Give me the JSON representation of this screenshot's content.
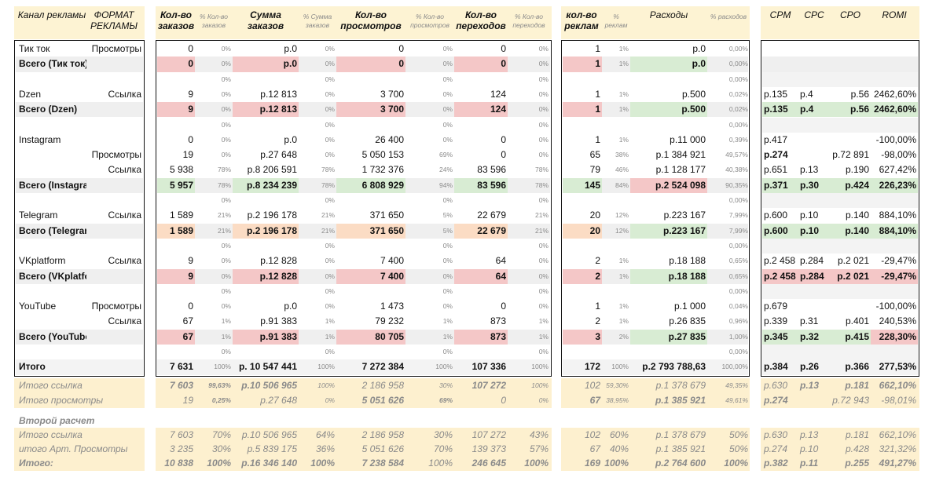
{
  "groups": [
    {
      "header": [
        {
          "text": "Канал рекламы",
          "col": "channel",
          "type": "main"
        },
        {
          "text": "ФОРМАТ РЕКЛАМЫ",
          "col": "format",
          "type": "main"
        }
      ]
    }
  ],
  "header": {
    "channel": "Канал рекламы",
    "format": "ФОРМАТ РЕКЛАМЫ",
    "orders": "Кол-во заказов",
    "orders_pct": "% Кол-во заказов",
    "sum": "Сумма заказов",
    "sum_pct": "% Сумма заказов",
    "views": "Кол-во просмотров",
    "views_pct": "% Кол-во просмотров",
    "clicks": "Кол-во переходов",
    "clicks_pct": "% Кол-во переходов",
    "ads": "кол-во реклам",
    "ads_pct": "% реклам",
    "costs": "Расходы",
    "costs_pct": "% расходов",
    "cpm": "CPM",
    "cpc": "CPC",
    "cpo": "CPO",
    "romi": "ROMI"
  },
  "rows": [
    {
      "channel": "Тик ток",
      "format": "Просмотры",
      "orders": "0",
      "orders_pct": "0%",
      "sum": "р.0",
      "sum_pct": "0%",
      "views": "0",
      "views_pct": "0%",
      "clicks": "0",
      "clicks_pct": "0%",
      "ads": "1",
      "ads_pct": "1%",
      "costs": "р.0",
      "costs_pct": "0,00%",
      "cpm": "",
      "cpc": "",
      "cpo": "",
      "romi": ""
    },
    {
      "channel": "Всего (Тик ток)",
      "format": "",
      "orders": "0",
      "orders_pct": "0%",
      "sum": "р.0",
      "sum_pct": "0%",
      "views": "0",
      "views_pct": "0%",
      "clicks": "0",
      "clicks_pct": "0%",
      "ads": "1",
      "ads_pct": "1%",
      "costs": "р.0",
      "costs_pct": "0,00%",
      "cpm": "",
      "cpc": "",
      "cpo": "",
      "romi": "",
      "total": true,
      "hl": "red",
      "costhl": "green",
      "metrichl": "none"
    },
    {
      "channel": "",
      "format": "",
      "orders": "",
      "orders_pct": "0%",
      "sum": "",
      "sum_pct": "0%",
      "views": "",
      "views_pct": "0%",
      "clicks": "",
      "clicks_pct": "0%",
      "ads": "",
      "ads_pct": "",
      "costs": "",
      "costs_pct": "0,00%",
      "cpm": "",
      "cpc": "",
      "cpo": "",
      "romi": ""
    },
    {
      "channel": "Dzen",
      "format": "Ссылка",
      "orders": "9",
      "orders_pct": "0%",
      "sum": "р.12 813",
      "sum_pct": "0%",
      "views": "3 700",
      "views_pct": "0%",
      "clicks": "124",
      "clicks_pct": "0%",
      "ads": "1",
      "ads_pct": "1%",
      "costs": "р.500",
      "costs_pct": "0,02%",
      "cpm": "р.135",
      "cpc": "р.4",
      "cpo": "р.56",
      "romi": "2462,60%"
    },
    {
      "channel": "Всего (Dzen)",
      "format": "",
      "orders": "9",
      "orders_pct": "0%",
      "sum": "р.12 813",
      "sum_pct": "0%",
      "views": "3 700",
      "views_pct": "0%",
      "clicks": "124",
      "clicks_pct": "0%",
      "ads": "1",
      "ads_pct": "1%",
      "costs": "р.500",
      "costs_pct": "0,02%",
      "cpm": "р.135",
      "cpc": "р.4",
      "cpo": "р.56",
      "romi": "2462,60%",
      "total": true,
      "hl": "red",
      "costhl": "green",
      "metrichl": "green"
    },
    {
      "channel": "",
      "format": "",
      "orders": "",
      "orders_pct": "0%",
      "sum": "",
      "sum_pct": "0%",
      "views": "",
      "views_pct": "0%",
      "clicks": "",
      "clicks_pct": "0%",
      "ads": "",
      "ads_pct": "",
      "costs": "",
      "costs_pct": "0,00%",
      "cpm": "",
      "cpc": "",
      "cpo": "",
      "romi": ""
    },
    {
      "channel": "Instagram",
      "format": "",
      "orders": "0",
      "orders_pct": "0%",
      "sum": "р.0",
      "sum_pct": "0%",
      "views": "26 400",
      "views_pct": "0%",
      "clicks": "0",
      "clicks_pct": "0%",
      "ads": "1",
      "ads_pct": "1%",
      "costs": "р.11 000",
      "costs_pct": "0,39%",
      "cpm": "р.417",
      "cpc": "",
      "cpo": "",
      "romi": "-100,00%"
    },
    {
      "channel": "",
      "format": "Просмотры",
      "orders": "19",
      "orders_pct": "0%",
      "sum": "р.27 648",
      "sum_pct": "0%",
      "views": "5 050 153",
      "views_pct": "69%",
      "clicks": "0",
      "clicks_pct": "0%",
      "ads": "65",
      "ads_pct": "38%",
      "costs": "р.1 384 921",
      "costs_pct": "49,57%",
      "cpm": "р.274",
      "cpc": "",
      "cpo": "р.72 891",
      "romi": "-98,00%",
      "cpmbold": true
    },
    {
      "channel": "",
      "format": "Ссылка",
      "orders": "5 938",
      "orders_pct": "78%",
      "sum": "р.8 206 591",
      "sum_pct": "78%",
      "views": "1 732 376",
      "views_pct": "24%",
      "clicks": "83 596",
      "clicks_pct": "78%",
      "ads": "79",
      "ads_pct": "46%",
      "costs": "р.1 128 177",
      "costs_pct": "40,38%",
      "cpm": "р.651",
      "cpc": "р.13",
      "cpo": "р.190",
      "romi": "627,42%"
    },
    {
      "channel": "Всего (Instagram)",
      "format": "",
      "orders": "5 957",
      "orders_pct": "78%",
      "sum": "р.8 234 239",
      "sum_pct": "78%",
      "views": "6 808 929",
      "views_pct": "94%",
      "clicks": "83 596",
      "clicks_pct": "78%",
      "ads": "145",
      "ads_pct": "84%",
      "costs": "р.2 524 098",
      "costs_pct": "90,35%",
      "cpm": "р.371",
      "cpc": "р.30",
      "cpo": "р.424",
      "romi": "226,23%",
      "total": true,
      "hl": "green",
      "costhl": "red",
      "metrichl": "green"
    },
    {
      "channel": "",
      "format": "",
      "orders": "",
      "orders_pct": "0%",
      "sum": "",
      "sum_pct": "0%",
      "views": "",
      "views_pct": "0%",
      "clicks": "",
      "clicks_pct": "0%",
      "ads": "",
      "ads_pct": "",
      "costs": "",
      "costs_pct": "0,00%",
      "cpm": "",
      "cpc": "",
      "cpo": "",
      "romi": ""
    },
    {
      "channel": "Telegram",
      "format": "Ссылка",
      "orders": "1 589",
      "orders_pct": "21%",
      "sum": "р.2 196 178",
      "sum_pct": "21%",
      "views": "371 650",
      "views_pct": "5%",
      "clicks": "22 679",
      "clicks_pct": "21%",
      "ads": "20",
      "ads_pct": "12%",
      "costs": "р.223 167",
      "costs_pct": "7,99%",
      "cpm": "р.600",
      "cpc": "р.10",
      "cpo": "р.140",
      "romi": "884,10%"
    },
    {
      "channel": "Всего (Telegram)",
      "format": "",
      "orders": "1 589",
      "orders_pct": "21%",
      "sum": "р.2 196 178",
      "sum_pct": "21%",
      "views": "371 650",
      "views_pct": "5%",
      "clicks": "22 679",
      "clicks_pct": "21%",
      "ads": "20",
      "ads_pct": "12%",
      "costs": "р.223 167",
      "costs_pct": "7,99%",
      "cpm": "р.600",
      "cpc": "р.10",
      "cpo": "р.140",
      "romi": "884,10%",
      "total": true,
      "hl": "orange",
      "costhl": "green",
      "metrichl": "green"
    },
    {
      "channel": "",
      "format": "",
      "orders": "",
      "orders_pct": "0%",
      "sum": "",
      "sum_pct": "0%",
      "views": "",
      "views_pct": "0%",
      "clicks": "",
      "clicks_pct": "0%",
      "ads": "",
      "ads_pct": "",
      "costs": "",
      "costs_pct": "0,00%",
      "cpm": "",
      "cpc": "",
      "cpo": "",
      "romi": ""
    },
    {
      "channel": "VKplatform",
      "format": "Ссылка",
      "orders": "9",
      "orders_pct": "0%",
      "sum": "р.12 828",
      "sum_pct": "0%",
      "views": "7 400",
      "views_pct": "0%",
      "clicks": "64",
      "clicks_pct": "0%",
      "ads": "2",
      "ads_pct": "1%",
      "costs": "р.18 188",
      "costs_pct": "0,65%",
      "cpm": "р.2 458",
      "cpc": "р.284",
      "cpo": "р.2 021",
      "romi": "-29,47%"
    },
    {
      "channel": "Всего (VKplatform)",
      "format": "",
      "orders": "9",
      "orders_pct": "0%",
      "sum": "р.12 828",
      "sum_pct": "0%",
      "views": "7 400",
      "views_pct": "0%",
      "clicks": "64",
      "clicks_pct": "0%",
      "ads": "2",
      "ads_pct": "1%",
      "costs": "р.18 188",
      "costs_pct": "0,65%",
      "cpm": "р.2 458",
      "cpc": "р.284",
      "cpo": "р.2 021",
      "romi": "-29,47%",
      "total": true,
      "hl": "red",
      "costhl": "green",
      "metrichl": "red"
    },
    {
      "channel": "",
      "format": "",
      "orders": "",
      "orders_pct": "0%",
      "sum": "",
      "sum_pct": "0%",
      "views": "",
      "views_pct": "0%",
      "clicks": "",
      "clicks_pct": "0%",
      "ads": "",
      "ads_pct": "",
      "costs": "",
      "costs_pct": "0,00%",
      "cpm": "",
      "cpc": "",
      "cpo": "",
      "romi": ""
    },
    {
      "channel": "YouTube",
      "format": "Просмотры",
      "orders": "0",
      "orders_pct": "0%",
      "sum": "р.0",
      "sum_pct": "0%",
      "views": "1 473",
      "views_pct": "0%",
      "clicks": "0",
      "clicks_pct": "0%",
      "ads": "1",
      "ads_pct": "1%",
      "costs": "р.1 000",
      "costs_pct": "0,04%",
      "cpm": "р.679",
      "cpc": "",
      "cpo": "",
      "romi": "-100,00%"
    },
    {
      "channel": "",
      "format": "Ссылка",
      "orders": "67",
      "orders_pct": "1%",
      "sum": "р.91 383",
      "sum_pct": "1%",
      "views": "79 232",
      "views_pct": "1%",
      "clicks": "873",
      "clicks_pct": "1%",
      "ads": "2",
      "ads_pct": "1%",
      "costs": "р.26 835",
      "costs_pct": "0,96%",
      "cpm": "р.339",
      "cpc": "р.31",
      "cpo": "р.401",
      "romi": "240,53%"
    },
    {
      "channel": "Всего (YouTube)",
      "format": "",
      "orders": "67",
      "orders_pct": "1%",
      "sum": "р.91 383",
      "sum_pct": "1%",
      "views": "80 705",
      "views_pct": "1%",
      "clicks": "873",
      "clicks_pct": "1%",
      "ads": "3",
      "ads_pct": "2%",
      "costs": "р.27 835",
      "costs_pct": "1,00%",
      "cpm": "р.345",
      "cpc": "р.32",
      "cpo": "р.415",
      "romi": "228,30%",
      "total": true,
      "hl": "red",
      "costhl": "green",
      "metrichl": "mix"
    },
    {
      "channel": "",
      "format": "",
      "orders": "",
      "orders_pct": "0%",
      "sum": "",
      "sum_pct": "0%",
      "views": "",
      "views_pct": "0%",
      "clicks": "",
      "clicks_pct": "0%",
      "ads": "",
      "ads_pct": "",
      "costs": "",
      "costs_pct": "0,00%",
      "cpm": "",
      "cpc": "",
      "cpo": "",
      "romi": ""
    },
    {
      "channel": "Итого",
      "format": "",
      "orders": "7 631",
      "orders_pct": "100%",
      "sum": "р. 10 547 441",
      "sum_pct": "100%",
      "views": "7 272 384",
      "views_pct": "100%",
      "clicks": "107 336",
      "clicks_pct": "100%",
      "ads": "172",
      "ads_pct": "100%",
      "costs": "р.2 793 788,63",
      "costs_pct": "100,00%",
      "cpm": "р.384",
      "cpc": "р.26",
      "cpo": "р.366",
      "romi": "277,53%",
      "grand": true
    }
  ],
  "summary": [
    {
      "channel": "Итого ссылка",
      "orders": "7 603",
      "orders_pct": "99,63%",
      "sum": "р.10 506 965",
      "sum_pct": "100%",
      "views": "2 186 958",
      "views_pct": "30%",
      "clicks": "107 272",
      "clicks_pct": "100%",
      "ads": "102",
      "ads_pct": "59,30%",
      "costs": "р.1 378 679",
      "costs_pct": "49,35%",
      "cpm": "р.630",
      "cpc": "р.13",
      "cpo": "р.181",
      "romi": "662,10%",
      "bold": [
        "orders",
        "orders_pct",
        "sum",
        "clicks",
        "cpc",
        "cpo",
        "romi"
      ]
    },
    {
      "channel": "Итого просмотры",
      "orders": "19",
      "orders_pct": "0,25%",
      "sum": "р.27 648",
      "sum_pct": "0%",
      "views": "5 051 626",
      "views_pct": "69%",
      "clicks": "0",
      "clicks_pct": "0%",
      "ads": "67",
      "ads_pct": "38,95%",
      "costs": "р.1 385 921",
      "costs_pct": "49,61%",
      "cpm": "р.274",
      "cpc": "",
      "cpo": "р.72 943",
      "romi": "-98,01%",
      "bold": [
        "orders_pct",
        "views",
        "views_pct",
        "ads",
        "costs",
        "cpm"
      ]
    },
    {
      "channel": "Второй расчет",
      "orders": "",
      "orders_pct": "",
      "sum": "",
      "sum_pct": "",
      "views": "",
      "views_pct": "",
      "clicks": "",
      "clicks_pct": "",
      "ads": "",
      "ads_pct": "",
      "costs": "",
      "costs_pct": "",
      "cpm": "",
      "cpc": "",
      "cpo": "",
      "romi": "",
      "section": true
    },
    {
      "channel": "Итого ссылка",
      "orders": "7 603",
      "orders_pct": "70%",
      "sum": "р.10 506 965",
      "sum_pct": "64%",
      "views": "2 186 958",
      "views_pct": "30%",
      "clicks": "107 272",
      "clicks_pct": "43%",
      "ads": "102",
      "ads_pct": "60%",
      "costs": "р.1 378 679",
      "costs_pct": "50%",
      "cpm": "р.630",
      "cpc": "р.13",
      "cpo": "р.181",
      "romi": "662,10%",
      "bold": [],
      "big": true
    },
    {
      "channel": "итого Арт. Просмотры",
      "orders": "3 235",
      "orders_pct": "30%",
      "sum": "р.5 839 175",
      "sum_pct": "36%",
      "views": "5 051 626",
      "views_pct": "70%",
      "clicks": "139 373",
      "clicks_pct": "57%",
      "ads": "67",
      "ads_pct": "40%",
      "costs": "р.1 385 921",
      "costs_pct": "50%",
      "cpm": "р.274",
      "cpc": "р.10",
      "cpo": "р.428",
      "romi": "321,32%",
      "bold": [],
      "big": true
    },
    {
      "channel": "Итого:",
      "orders": "10 838",
      "orders_pct": "100%",
      "sum": "р.16 346 140",
      "sum_pct": "100%",
      "views": "7 238 584",
      "views_pct": "100%",
      "clicks": "246 645",
      "clicks_pct": "100%",
      "ads": "169",
      "ads_pct": "100%",
      "costs": "р.2 764 600",
      "costs_pct": "100%",
      "cpm": "р.382",
      "cpc": "р.11",
      "cpo": "р.255",
      "romi": "491,27%",
      "bold": [
        "channel",
        "orders",
        "orders_pct",
        "sum",
        "sum_pct",
        "views",
        "clicks",
        "clicks_pct",
        "ads",
        "ads_pct",
        "costs",
        "costs_pct",
        "cpm",
        "cpc",
        "cpo",
        "romi"
      ],
      "big": true
    }
  ],
  "colors": {
    "header_bg": "#fdf3d3",
    "summary_bg": "#fdf0cf",
    "total_row_bg": "#efefef",
    "red": "#f4c7c7",
    "green": "#d8ecd3",
    "orange": "#fbdcc4",
    "empty_bg": "#efefef"
  }
}
